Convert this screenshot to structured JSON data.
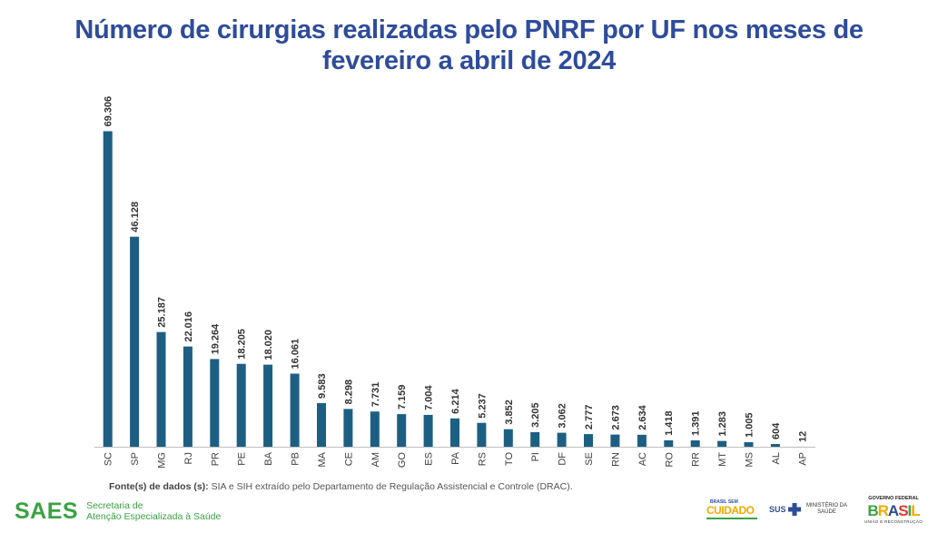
{
  "title": {
    "line1": "Número de cirurgias realizadas pelo PNRF por UF nos meses de",
    "line2": "fevereiro a abril de 2024"
  },
  "chart_data": {
    "type": "bar",
    "title": "Número de cirurgias realizadas pelo PNRF por UF nos meses de fevereiro a abril de 2024",
    "xlabel": "",
    "ylabel": "",
    "ylim": [
      0,
      70000
    ],
    "grid": false,
    "bar_color": "#1D5F82",
    "categories": [
      "SC",
      "SP",
      "MG",
      "RJ",
      "PR",
      "PE",
      "BA",
      "PB",
      "MA",
      "CE",
      "AM",
      "GO",
      "ES",
      "PA",
      "RS",
      "TO",
      "PI",
      "DF",
      "SE",
      "RN",
      "AC",
      "RO",
      "RR",
      "MT",
      "MS",
      "AL",
      "AP"
    ],
    "values": [
      69306,
      46128,
      25187,
      22016,
      19264,
      18205,
      18020,
      16061,
      9583,
      8298,
      7731,
      7159,
      7004,
      6214,
      5237,
      3852,
      3205,
      3062,
      2777,
      2673,
      2634,
      1418,
      1391,
      1283,
      1005,
      604,
      12
    ],
    "value_labels": [
      "69.306",
      "46.128",
      "25.187",
      "22.016",
      "19.264",
      "18.205",
      "18.020",
      "16.061",
      "9.583",
      "8.298",
      "7.731",
      "7.159",
      "7.004",
      "6.214",
      "5.237",
      "3.852",
      "3.205",
      "3.062",
      "2.777",
      "2.673",
      "2.634",
      "1.418",
      "1.391",
      "1.283",
      "1.005",
      "604",
      "12"
    ]
  },
  "source": {
    "label": "Fonte(s) de dados (s):",
    "text": "SIA e SIH extraído pelo Departamento de Regulação Assistencial e Controle (DRAC)."
  },
  "footer": {
    "saes": "SAES",
    "saes_line1": "Secretaria de",
    "saes_line2": "Atenção Especializada à Saúde",
    "brasil_sem": "BRASIL SEM",
    "cuidado": "CUIDADO",
    "sus": "SUS",
    "ministerio_line1": "MINISTÉRIO DA",
    "ministerio_line2": "SAÚDE",
    "gov_top": "GOVERNO FEDERAL",
    "gov_brasil": "BRASIL",
    "gov_bottom": "UNIÃO E RECONSTRUÇÃO"
  }
}
